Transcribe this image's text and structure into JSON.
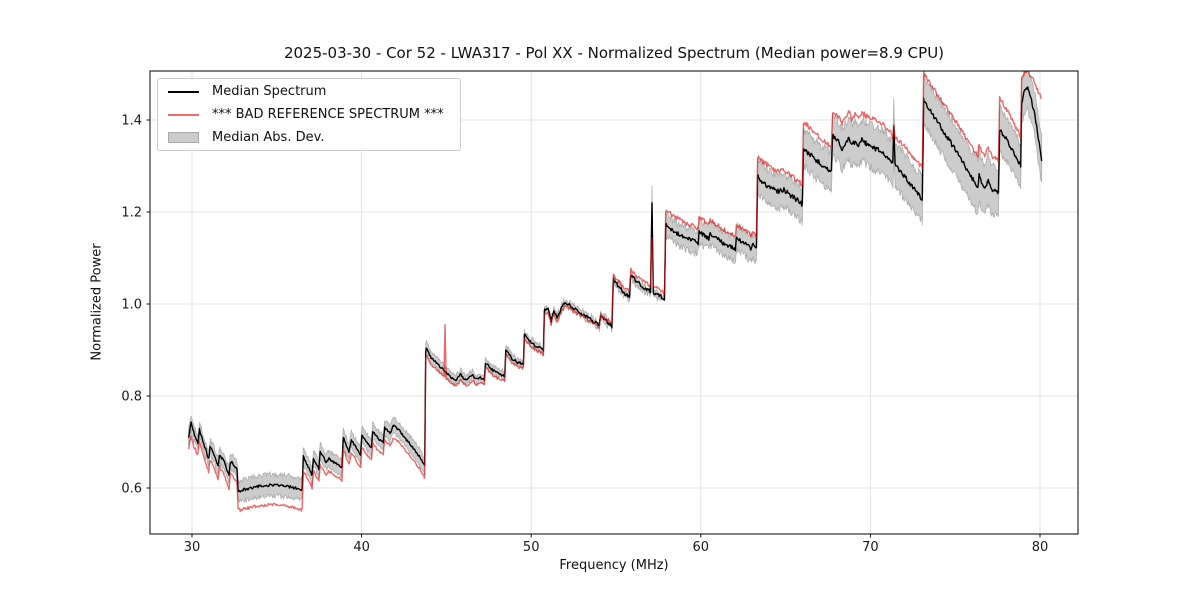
{
  "figure": {
    "background": "#ffffff"
  },
  "chart_data": {
    "type": "line",
    "title": "2025-03-30 - Cor 52 - LWA317 - Pol XX - Normalized Spectrum (Median power=8.9 CPU)",
    "xlabel": "Frequency (MHz)",
    "ylabel": "Normalized Power",
    "xlim": [
      27.5,
      82.3
    ],
    "ylim": [
      0.5,
      1.507
    ],
    "x_ticks": [
      "30",
      "40",
      "50",
      "60",
      "70",
      "80"
    ],
    "x_tick_values": [
      30,
      40,
      50,
      60,
      70,
      80
    ],
    "y_ticks": [
      "0.6",
      "0.8",
      "1.0",
      "1.2",
      "1.4"
    ],
    "y_tick_values": [
      0.6,
      0.8,
      1.0,
      1.2,
      1.4
    ],
    "grid": true,
    "legend_position": "upper left",
    "colors": {
      "median": "#000000",
      "bad_reference": "#f66a68",
      "bad_reference_stroke": "#e11111",
      "bad_reference_opacity": 0.63,
      "mad_band": "#cccccc",
      "mad_band_edge": "#adadad",
      "grid": "#e4e4e4",
      "frame": "#000000",
      "text": "#1a1a1a"
    },
    "f_range": [
      29.8,
      80.1
    ],
    "f_step": 0.05,
    "jag_amplitude_anchors": [
      [
        29.8,
        0.0035
      ],
      [
        43.78,
        0.0022
      ],
      [
        57.93,
        0.0045
      ],
      [
        63.35,
        0.005
      ],
      [
        67.77,
        0.0058
      ],
      [
        73.14,
        0.005
      ],
      [
        80.1,
        0.005
      ]
    ],
    "series": [
      {
        "name": "Median Spectrum",
        "type": "line",
        "color": "#000000",
        "anchors": [
          [
            29.8,
            0.712
          ],
          [
            29.95,
            0.742
          ],
          [
            30.1,
            0.72
          ],
          [
            30.35,
            0.7
          ],
          [
            30.44,
            0.727
          ],
          [
            30.7,
            0.695
          ],
          [
            30.98,
            0.663
          ],
          [
            31.06,
            0.69
          ],
          [
            31.3,
            0.673
          ],
          [
            31.54,
            0.647
          ],
          [
            31.62,
            0.673
          ],
          [
            31.9,
            0.657
          ],
          [
            32.18,
            0.626
          ],
          [
            32.26,
            0.658
          ],
          [
            32.5,
            0.649
          ],
          [
            32.66,
            0.639
          ],
          [
            32.72,
            0.592
          ],
          [
            33.2,
            0.598
          ],
          [
            34.0,
            0.604
          ],
          [
            34.8,
            0.607
          ],
          [
            35.6,
            0.604
          ],
          [
            36.2,
            0.599
          ],
          [
            36.5,
            0.596
          ],
          [
            36.56,
            0.668
          ],
          [
            36.9,
            0.642
          ],
          [
            37.08,
            0.627
          ],
          [
            37.16,
            0.666
          ],
          [
            37.48,
            0.641
          ],
          [
            37.56,
            0.679
          ],
          [
            37.9,
            0.657
          ],
          [
            38.08,
            0.664
          ],
          [
            38.5,
            0.653
          ],
          [
            38.84,
            0.644
          ],
          [
            38.92,
            0.712
          ],
          [
            39.25,
            0.679
          ],
          [
            39.4,
            0.704
          ],
          [
            39.7,
            0.686
          ],
          [
            39.94,
            0.673
          ],
          [
            40.02,
            0.716
          ],
          [
            40.34,
            0.698
          ],
          [
            40.58,
            0.689
          ],
          [
            40.66,
            0.724
          ],
          [
            41.0,
            0.707
          ],
          [
            41.28,
            0.699
          ],
          [
            41.36,
            0.731
          ],
          [
            41.68,
            0.719
          ],
          [
            41.88,
            0.736
          ],
          [
            42.2,
            0.726
          ],
          [
            42.6,
            0.707
          ],
          [
            43.0,
            0.689
          ],
          [
            43.4,
            0.669
          ],
          [
            43.72,
            0.648
          ],
          [
            43.78,
            0.898
          ],
          [
            43.82,
            0.904
          ],
          [
            44.1,
            0.883
          ],
          [
            44.5,
            0.869
          ],
          [
            44.98,
            0.851
          ],
          [
            45.3,
            0.839
          ],
          [
            45.6,
            0.835
          ],
          [
            45.85,
            0.848
          ],
          [
            46.0,
            0.838
          ],
          [
            46.2,
            0.834
          ],
          [
            46.55,
            0.846
          ],
          [
            46.75,
            0.836
          ],
          [
            47.05,
            0.84
          ],
          [
            47.24,
            0.835
          ],
          [
            47.3,
            0.873
          ],
          [
            47.7,
            0.857
          ],
          [
            48.0,
            0.849
          ],
          [
            48.44,
            0.844
          ],
          [
            48.5,
            0.9
          ],
          [
            48.9,
            0.881
          ],
          [
            49.2,
            0.873
          ],
          [
            49.54,
            0.869
          ],
          [
            49.6,
            0.933
          ],
          [
            50.0,
            0.916
          ],
          [
            50.4,
            0.906
          ],
          [
            50.72,
            0.899
          ],
          [
            50.78,
            0.986
          ],
          [
            51.0,
            0.991
          ],
          [
            51.18,
            0.964
          ],
          [
            51.34,
            0.986
          ],
          [
            51.52,
            0.969
          ],
          [
            51.74,
            0.987
          ],
          [
            52.0,
            1.004
          ],
          [
            52.3,
            0.996
          ],
          [
            52.7,
            0.986
          ],
          [
            53.1,
            0.976
          ],
          [
            53.5,
            0.966
          ],
          [
            54.02,
            0.953
          ],
          [
            54.1,
            0.978
          ],
          [
            54.45,
            0.963
          ],
          [
            54.76,
            0.951
          ],
          [
            54.84,
            1.053
          ],
          [
            55.2,
            1.036
          ],
          [
            55.5,
            1.023
          ],
          [
            55.8,
            1.016
          ],
          [
            55.87,
            1.063
          ],
          [
            56.2,
            1.049
          ],
          [
            56.6,
            1.036
          ],
          [
            57.04,
            1.028
          ],
          [
            57.12,
            1.218
          ],
          [
            57.2,
            1.026
          ],
          [
            57.5,
            1.02
          ],
          [
            57.86,
            1.008
          ],
          [
            57.93,
            1.172
          ],
          [
            58.3,
            1.161
          ],
          [
            58.7,
            1.151
          ],
          [
            59.1,
            1.143
          ],
          [
            59.5,
            1.139
          ],
          [
            59.84,
            1.133
          ],
          [
            59.91,
            1.158
          ],
          [
            60.2,
            1.149
          ],
          [
            60.48,
            1.143
          ],
          [
            60.55,
            1.153
          ],
          [
            60.9,
            1.143
          ],
          [
            61.3,
            1.133
          ],
          [
            61.7,
            1.126
          ],
          [
            62.04,
            1.119
          ],
          [
            62.11,
            1.143
          ],
          [
            62.5,
            1.133
          ],
          [
            62.8,
            1.126
          ],
          [
            62.98,
            1.121
          ],
          [
            63.08,
            1.128
          ],
          [
            63.28,
            1.119
          ],
          [
            63.35,
            1.278
          ],
          [
            63.7,
            1.263
          ],
          [
            64.1,
            1.253
          ],
          [
            64.5,
            1.244
          ],
          [
            64.9,
            1.248
          ],
          [
            65.3,
            1.236
          ],
          [
            65.7,
            1.226
          ],
          [
            65.98,
            1.216
          ],
          [
            66.05,
            1.34
          ],
          [
            66.4,
            1.326
          ],
          [
            66.8,
            1.313
          ],
          [
            67.2,
            1.301
          ],
          [
            67.7,
            1.289
          ],
          [
            67.77,
            1.365
          ],
          [
            68.1,
            1.353
          ],
          [
            68.33,
            1.333
          ],
          [
            68.5,
            1.346
          ],
          [
            68.73,
            1.361
          ],
          [
            68.9,
            1.343
          ],
          [
            69.1,
            1.353
          ],
          [
            69.3,
            1.346
          ],
          [
            69.5,
            1.356
          ],
          [
            69.74,
            1.349
          ],
          [
            70.0,
            1.343
          ],
          [
            70.3,
            1.338
          ],
          [
            70.6,
            1.333
          ],
          [
            70.9,
            1.323
          ],
          [
            71.15,
            1.313
          ],
          [
            71.32,
            1.306
          ],
          [
            71.38,
            1.383
          ],
          [
            71.46,
            1.301
          ],
          [
            71.7,
            1.291
          ],
          [
            72.0,
            1.279
          ],
          [
            72.4,
            1.259
          ],
          [
            72.8,
            1.239
          ],
          [
            73.06,
            1.228
          ],
          [
            73.14,
            1.443
          ],
          [
            73.5,
            1.423
          ],
          [
            73.9,
            1.399
          ],
          [
            74.3,
            1.376
          ],
          [
            74.7,
            1.353
          ],
          [
            75.1,
            1.329
          ],
          [
            75.5,
            1.306
          ],
          [
            75.9,
            1.279
          ],
          [
            76.2,
            1.263
          ],
          [
            76.34,
            1.253
          ],
          [
            76.41,
            1.279
          ],
          [
            76.6,
            1.256
          ],
          [
            76.74,
            1.249
          ],
          [
            76.94,
            1.269
          ],
          [
            77.2,
            1.248
          ],
          [
            77.55,
            1.239
          ],
          [
            77.62,
            1.38
          ],
          [
            77.95,
            1.362
          ],
          [
            78.2,
            1.346
          ],
          [
            78.56,
            1.322
          ],
          [
            78.86,
            1.3
          ],
          [
            78.92,
            1.44
          ],
          [
            79.1,
            1.463
          ],
          [
            79.28,
            1.468
          ],
          [
            79.5,
            1.442
          ],
          [
            79.7,
            1.41
          ],
          [
            79.9,
            1.36
          ],
          [
            80.1,
            1.308
          ]
        ]
      },
      {
        "name": "*** BAD REFERENCE SPECTRUM ***",
        "type": "line",
        "color": "#f66a68",
        "offset_from_median_anchors": [
          [
            29.8,
            -0.028
          ],
          [
            32.6,
            -0.028
          ],
          [
            32.85,
            -0.042
          ],
          [
            34.8,
            -0.042
          ],
          [
            36.45,
            -0.044
          ],
          [
            36.6,
            -0.028
          ],
          [
            43.7,
            -0.026
          ],
          [
            43.85,
            -0.015
          ],
          [
            44.86,
            -0.013
          ],
          [
            44.92,
            0.102
          ],
          [
            44.98,
            -0.013
          ],
          [
            47.0,
            -0.011
          ],
          [
            50.0,
            -0.009
          ],
          [
            52.0,
            -0.007
          ],
          [
            54.0,
            -0.003
          ],
          [
            54.9,
            0.01
          ],
          [
            55.9,
            0.013
          ],
          [
            57.06,
            0.013
          ],
          [
            57.12,
            -0.078
          ],
          [
            57.18,
            0.013
          ],
          [
            57.88,
            0.014
          ],
          [
            57.96,
            0.034
          ],
          [
            59.0,
            0.033
          ],
          [
            63.28,
            0.028
          ],
          [
            63.38,
            0.046
          ],
          [
            65.98,
            0.042
          ],
          [
            66.08,
            0.058
          ],
          [
            67.7,
            0.054
          ],
          [
            67.8,
            0.053
          ],
          [
            69.0,
            0.06
          ],
          [
            71.3,
            0.062
          ],
          [
            71.38,
            0.004
          ],
          [
            71.46,
            0.063
          ],
          [
            73.08,
            0.068
          ],
          [
            73.17,
            0.058
          ],
          [
            75.0,
            0.062
          ],
          [
            76.0,
            0.066
          ],
          [
            76.38,
            0.07
          ],
          [
            77.55,
            0.073
          ],
          [
            77.65,
            0.068
          ],
          [
            78.86,
            0.062
          ],
          [
            79.0,
            0.045
          ],
          [
            79.35,
            0.038
          ],
          [
            79.7,
            0.07
          ],
          [
            80.1,
            0.135
          ]
        ]
      },
      {
        "name": "Median Abs. Dev.",
        "type": "band",
        "color": "#cccccc",
        "halfwidth_anchors": [
          [
            29.8,
            0.016
          ],
          [
            32.6,
            0.016
          ],
          [
            32.85,
            0.023
          ],
          [
            36.45,
            0.023
          ],
          [
            36.6,
            0.017
          ],
          [
            43.7,
            0.017
          ],
          [
            43.85,
            0.013
          ],
          [
            47.0,
            0.009
          ],
          [
            50.8,
            0.008
          ],
          [
            52.0,
            0.007
          ],
          [
            57.06,
            0.007
          ],
          [
            57.12,
            0.036
          ],
          [
            57.18,
            0.007
          ],
          [
            57.88,
            0.007
          ],
          [
            57.96,
            0.023
          ],
          [
            60.0,
            0.024
          ],
          [
            63.28,
            0.026
          ],
          [
            63.38,
            0.036
          ],
          [
            65.98,
            0.037
          ],
          [
            66.08,
            0.039
          ],
          [
            67.7,
            0.04
          ],
          [
            67.8,
            0.042
          ],
          [
            69.0,
            0.044
          ],
          [
            70.0,
            0.046
          ],
          [
            71.3,
            0.047
          ],
          [
            71.38,
            0.058
          ],
          [
            71.46,
            0.047
          ],
          [
            73.08,
            0.05
          ],
          [
            73.17,
            0.05
          ],
          [
            75.0,
            0.055
          ],
          [
            76.2,
            0.058
          ],
          [
            77.55,
            0.05
          ],
          [
            77.65,
            0.046
          ],
          [
            78.86,
            0.045
          ],
          [
            79.3,
            0.046
          ],
          [
            80.1,
            0.05
          ]
        ]
      }
    ]
  }
}
